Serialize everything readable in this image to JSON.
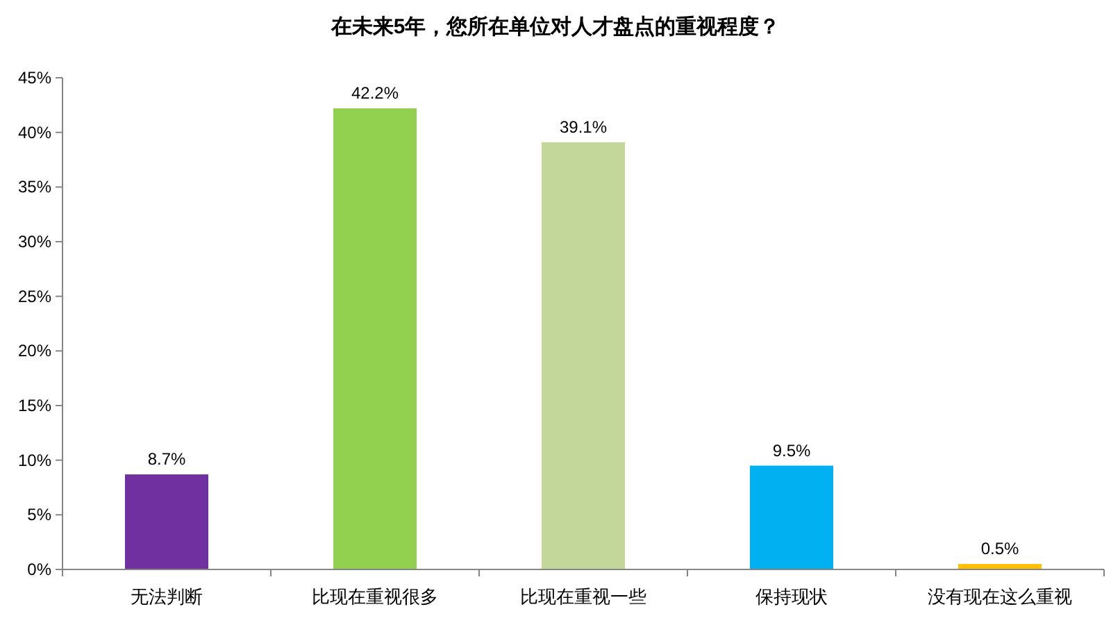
{
  "chart_data": {
    "type": "bar",
    "title": "在未来5年，您所在单位对人才盘点的重视程度？",
    "categories": [
      "无法判断",
      "比现在重视很多",
      "比现在重视一些",
      "保持现状",
      "没有现在这么重视"
    ],
    "values": [
      8.7,
      42.2,
      39.1,
      9.5,
      0.5
    ],
    "colors": [
      "#7030a0",
      "#92d050",
      "#c4d79b",
      "#00b0f0",
      "#ffc000"
    ],
    "value_labels": [
      "8.7%",
      "42.2%",
      "39.1%",
      "9.5%",
      "0.5%"
    ],
    "ylim": [
      0,
      45
    ],
    "yticks": [
      {
        "value": 0,
        "label": "0%"
      },
      {
        "value": 5,
        "label": "5%"
      },
      {
        "value": 10,
        "label": "10%"
      },
      {
        "value": 15,
        "label": "15%"
      },
      {
        "value": 20,
        "label": "20%"
      },
      {
        "value": 25,
        "label": "25%"
      },
      {
        "value": 30,
        "label": "30%"
      },
      {
        "value": 35,
        "label": "35%"
      },
      {
        "value": 40,
        "label": "40%"
      },
      {
        "value": 45,
        "label": "45%"
      }
    ],
    "grid": false
  }
}
